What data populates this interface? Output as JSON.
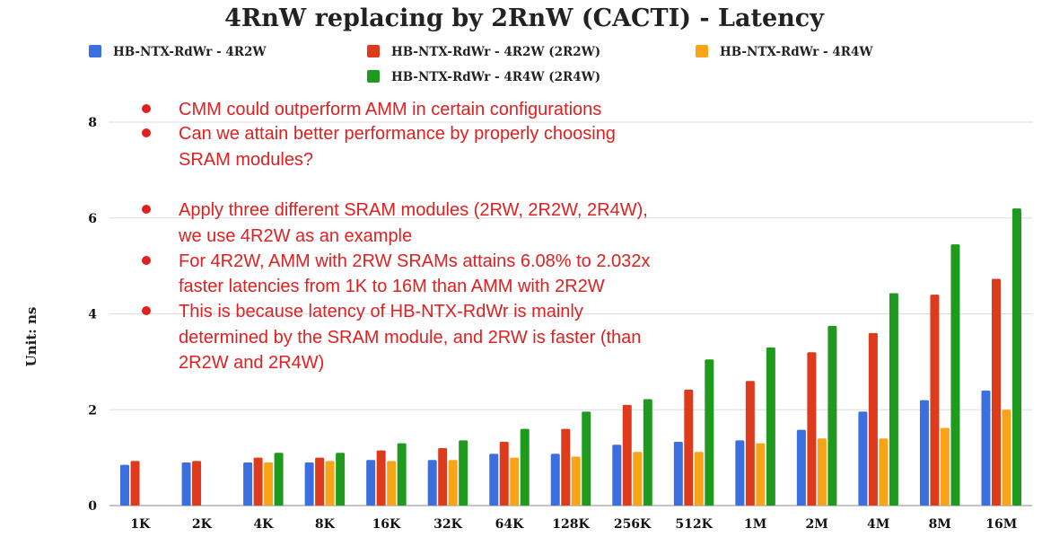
{
  "chart_data": {
    "type": "bar",
    "title": "4RnW replacing by 2RnW (CACTI) - Latency",
    "ylabel": "Unit: ns",
    "xlabel": "",
    "ylim": [
      0,
      8
    ],
    "yticks": [
      0,
      2,
      4,
      6,
      8
    ],
    "grid": true,
    "legend_position": "top",
    "categories": [
      "1K",
      "2K",
      "4K",
      "8K",
      "16K",
      "32K",
      "64K",
      "128K",
      "256K",
      "512K",
      "1M",
      "2M",
      "4M",
      "8M",
      "16M"
    ],
    "series": [
      {
        "name": "HB-NTX-RdWr - 4R2W",
        "color": "#3b6fe0",
        "values": [
          0.85,
          0.9,
          0.9,
          0.9,
          0.95,
          0.95,
          1.08,
          1.08,
          1.27,
          1.33,
          1.36,
          1.58,
          1.96,
          2.2,
          2.4
        ]
      },
      {
        "name": "HB-NTX-RdWr - 4R2W (2R2W)",
        "color": "#dd3b1c",
        "values": [
          0.93,
          0.93,
          1.0,
          1.0,
          1.15,
          1.2,
          1.33,
          1.6,
          2.1,
          2.42,
          2.6,
          3.2,
          3.6,
          4.4,
          4.73
        ]
      },
      {
        "name": "HB-NTX-RdWr - 4R4W",
        "color": "#f7a418",
        "values": [
          null,
          null,
          0.9,
          0.93,
          0.93,
          0.95,
          1.0,
          1.02,
          1.12,
          1.12,
          1.3,
          1.4,
          1.4,
          1.62,
          2.0
        ]
      },
      {
        "name": "HB-NTX-RdWr - 4R4W (2R4W)",
        "color": "#1f9a1f",
        "values": [
          null,
          null,
          1.1,
          1.1,
          1.3,
          1.36,
          1.6,
          1.96,
          2.22,
          3.05,
          3.3,
          3.75,
          4.43,
          5.45,
          6.2
        ]
      }
    ],
    "annotations": [
      {
        "bullet": true,
        "lines": [
          "CMM could outperform AMM in certain configurations"
        ]
      },
      {
        "bullet": true,
        "lines": [
          "Can we attain better performance by properly choosing",
          "SRAM modules?"
        ]
      },
      {
        "bullet": true,
        "lines": [
          "Apply three different SRAM modules (2RW, 2R2W, 2R4W),",
          "we use 4R2W as an example"
        ]
      },
      {
        "bullet": true,
        "lines": [
          "For 4R2W, AMM with 2RW SRAMs attains 6.08% to 2.032x",
          "faster latencies from 1K to 16M than AMM with 2R2W"
        ]
      },
      {
        "bullet": true,
        "lines": [
          "This is because latency of HB-NTX-RdWr is mainly",
          "determined by the SRAM module, and 2RW is faster (than",
          "2R2W and 2R4W)"
        ]
      }
    ],
    "annotation_color": "#e02020"
  }
}
